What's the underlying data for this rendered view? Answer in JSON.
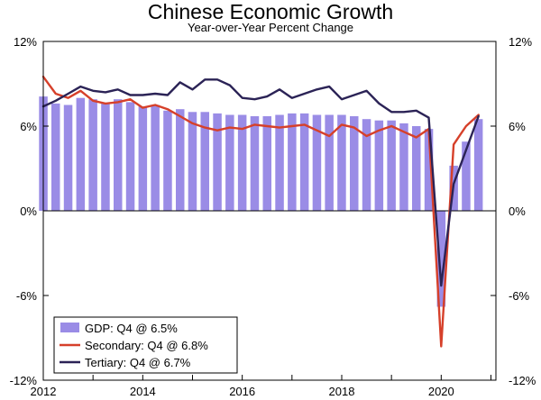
{
  "chart_data": {
    "type": "bar",
    "title": "Chinese Economic Growth",
    "subtitle": "Year-over-Year Percent Change",
    "xlabel": "",
    "ylabel": "",
    "ylim": [
      -12,
      12
    ],
    "yticks": [
      12,
      6,
      0,
      -6,
      -12
    ],
    "ytick_labels": [
      "12%",
      "6%",
      "0%",
      "-6%",
      "-12%"
    ],
    "xlim": [
      2012,
      2021.1
    ],
    "xticks": [
      2012,
      2014,
      2016,
      2018,
      2020
    ],
    "xtick_labels": [
      "2012",
      "2014",
      "2016",
      "2018",
      "2020"
    ],
    "grid": false,
    "legend_position": "bottom-left",
    "colors": {
      "gdp": "#9a8ce6",
      "secondary": "#d6402a",
      "tertiary": "#2b2356"
    },
    "legend": [
      {
        "key": "gdp",
        "label": "GDP: Q4 @ 6.5%",
        "type": "bar"
      },
      {
        "key": "secondary",
        "label": "Secondary: Q4 @ 6.8%",
        "type": "line"
      },
      {
        "key": "tertiary",
        "label": "Tertiary: Q4 @ 6.7%",
        "type": "line"
      }
    ],
    "x": [
      2012.0,
      2012.25,
      2012.5,
      2012.75,
      2013.0,
      2013.25,
      2013.5,
      2013.75,
      2014.0,
      2014.25,
      2014.5,
      2014.75,
      2015.0,
      2015.25,
      2015.5,
      2015.75,
      2016.0,
      2016.25,
      2016.5,
      2016.75,
      2017.0,
      2017.25,
      2017.5,
      2017.75,
      2018.0,
      2018.25,
      2018.5,
      2018.75,
      2019.0,
      2019.25,
      2019.5,
      2019.75,
      2020.0,
      2020.25,
      2020.5,
      2020.75
    ],
    "series": [
      {
        "key": "gdp",
        "type": "bar",
        "values": [
          8.1,
          7.6,
          7.5,
          8.0,
          7.9,
          7.6,
          7.9,
          7.7,
          7.4,
          7.5,
          7.1,
          7.2,
          7.0,
          7.0,
          6.9,
          6.8,
          6.8,
          6.7,
          6.7,
          6.8,
          6.9,
          6.9,
          6.8,
          6.8,
          6.8,
          6.7,
          6.5,
          6.4,
          6.4,
          6.2,
          6.0,
          5.8,
          -6.8,
          3.2,
          4.9,
          6.5
        ]
      },
      {
        "key": "secondary",
        "type": "line",
        "values": [
          9.5,
          8.3,
          8.0,
          8.5,
          7.8,
          7.6,
          7.7,
          7.9,
          7.3,
          7.5,
          7.2,
          6.7,
          6.2,
          5.9,
          5.7,
          5.9,
          5.8,
          6.1,
          6.0,
          5.9,
          6.0,
          6.1,
          5.7,
          5.3,
          6.1,
          5.9,
          5.3,
          5.7,
          6.0,
          5.6,
          5.2,
          5.8,
          -9.6,
          4.7,
          6.0,
          6.8
        ]
      },
      {
        "key": "tertiary",
        "type": "line",
        "values": [
          7.4,
          7.8,
          8.3,
          8.8,
          8.5,
          8.4,
          8.6,
          8.2,
          8.2,
          8.3,
          8.2,
          9.1,
          8.6,
          9.3,
          9.3,
          8.9,
          8.0,
          7.9,
          8.1,
          8.6,
          8.0,
          8.3,
          8.6,
          8.8,
          7.9,
          8.2,
          8.5,
          7.6,
          7.0,
          7.0,
          7.1,
          6.6,
          -5.3,
          1.9,
          4.3,
          6.7
        ]
      }
    ],
    "right_axis_mirror": true
  }
}
